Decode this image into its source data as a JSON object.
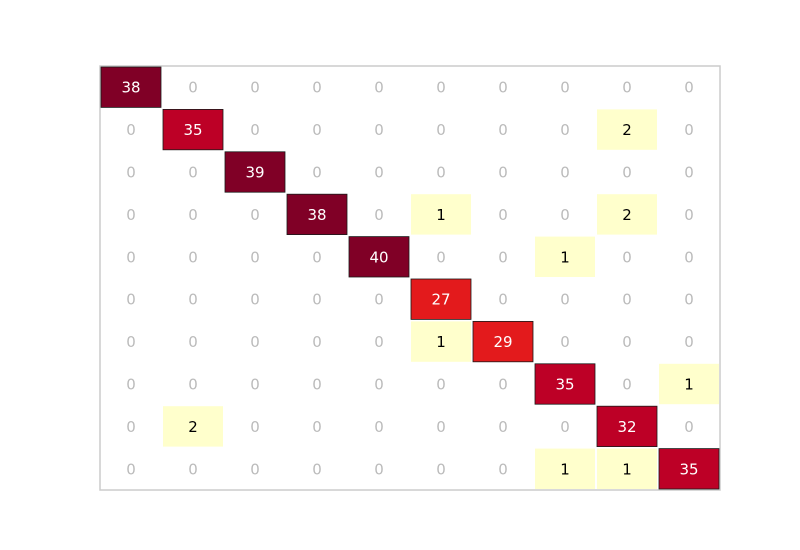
{
  "chart_data": {
    "type": "heatmap",
    "title": "",
    "xlabel": "",
    "ylabel": "",
    "rows": 10,
    "cols": 10,
    "values": [
      [
        38,
        0,
        0,
        0,
        0,
        0,
        0,
        0,
        0,
        0
      ],
      [
        0,
        35,
        0,
        0,
        0,
        0,
        0,
        0,
        2,
        0
      ],
      [
        0,
        0,
        39,
        0,
        0,
        0,
        0,
        0,
        0,
        0
      ],
      [
        0,
        0,
        0,
        38,
        0,
        1,
        0,
        0,
        2,
        0
      ],
      [
        0,
        0,
        0,
        0,
        40,
        0,
        0,
        1,
        0,
        0
      ],
      [
        0,
        0,
        0,
        0,
        0,
        27,
        0,
        0,
        0,
        0
      ],
      [
        0,
        0,
        0,
        0,
        0,
        1,
        29,
        0,
        0,
        0
      ],
      [
        0,
        0,
        0,
        0,
        0,
        0,
        0,
        35,
        0,
        1
      ],
      [
        0,
        2,
        0,
        0,
        0,
        0,
        0,
        0,
        32,
        0
      ],
      [
        0,
        0,
        0,
        0,
        0,
        0,
        0,
        1,
        1,
        35
      ]
    ],
    "colors": {
      "diagonal_high": "#800026",
      "diagonal_mid": "#bd0026",
      "diagonal_low": "#e31a1c",
      "offdiag_nonzero": "#ffffcc",
      "zero_text": "#bbbbbb",
      "frame": "#cccccc"
    },
    "grid": false,
    "legend": "none"
  }
}
